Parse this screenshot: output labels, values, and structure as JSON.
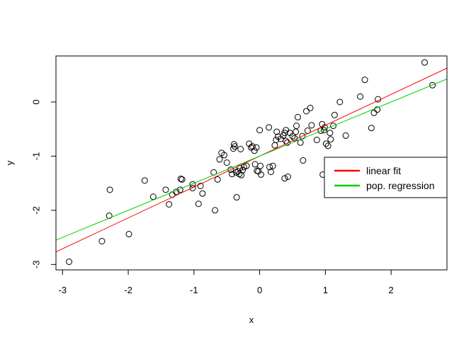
{
  "chart_data": {
    "type": "scatter",
    "title": "",
    "xlabel": "x",
    "ylabel": "y",
    "xlim": [
      -3.1,
      2.85
    ],
    "ylim": [
      -3.1,
      0.85
    ],
    "xticks": [
      -3,
      -2,
      -1,
      0,
      1,
      2
    ],
    "yticks": [
      -3,
      -2,
      -1,
      0
    ],
    "grid": false,
    "legend_position": "right",
    "legend": [
      {
        "label": "linear fit",
        "color": "#ff0000"
      },
      {
        "label": "pop. regression",
        "color": "#00cd00"
      }
    ],
    "series": [
      {
        "kind": "points",
        "marker": "open-circle",
        "color": "#000000",
        "points": [
          [
            -2.9,
            -2.95
          ],
          [
            -2.4,
            -2.57
          ],
          [
            -2.29,
            -2.1
          ],
          [
            -2.28,
            -1.62
          ],
          [
            -1.99,
            -2.44
          ],
          [
            -1.75,
            -1.45
          ],
          [
            -1.62,
            -1.75
          ],
          [
            -1.43,
            -1.62
          ],
          [
            -1.38,
            -1.89
          ],
          [
            -1.33,
            -1.71
          ],
          [
            -1.27,
            -1.66
          ],
          [
            -1.21,
            -1.62
          ],
          [
            -1.2,
            -1.42
          ],
          [
            -1.18,
            -1.43
          ],
          [
            -1.02,
            -1.52
          ],
          [
            -1.02,
            -1.59
          ],
          [
            -0.93,
            -1.88
          ],
          [
            -0.9,
            -1.55
          ],
          [
            -0.87,
            -1.69
          ],
          [
            -0.7,
            -1.3
          ],
          [
            -0.68,
            -2.0
          ],
          [
            -0.64,
            -1.43
          ],
          [
            -0.61,
            -1.06
          ],
          [
            -0.58,
            -0.94
          ],
          [
            -0.54,
            -0.98
          ],
          [
            -0.5,
            -1.12
          ],
          [
            -0.44,
            -1.25
          ],
          [
            -0.42,
            -1.33
          ],
          [
            -0.4,
            -0.86
          ],
          [
            -0.39,
            -0.78
          ],
          [
            -0.38,
            -0.82
          ],
          [
            -0.36,
            -1.3
          ],
          [
            -0.35,
            -1.76
          ],
          [
            -0.33,
            -1.28
          ],
          [
            -0.31,
            -1.33
          ],
          [
            -0.3,
            -1.22
          ],
          [
            -0.29,
            -0.87
          ],
          [
            -0.28,
            -1.35
          ],
          [
            -0.26,
            -1.26
          ],
          [
            -0.24,
            -1.2
          ],
          [
            -0.2,
            -1.18
          ],
          [
            -0.16,
            -0.77
          ],
          [
            -0.13,
            -0.84
          ],
          [
            -0.11,
            -0.82
          ],
          [
            -0.08,
            -0.9
          ],
          [
            -0.07,
            -1.15
          ],
          [
            -0.05,
            -0.84
          ],
          [
            -0.04,
            -1.27
          ],
          [
            -0.02,
            -1.28
          ],
          [
            0.0,
            -0.52
          ],
          [
            0.01,
            -1.18
          ],
          [
            0.02,
            -1.34
          ],
          [
            0.14,
            -0.47
          ],
          [
            0.15,
            -1.2
          ],
          [
            0.17,
            -1.29
          ],
          [
            0.2,
            -1.18
          ],
          [
            0.23,
            -0.8
          ],
          [
            0.25,
            -0.7
          ],
          [
            0.26,
            -0.55
          ],
          [
            0.28,
            -0.64
          ],
          [
            0.32,
            -0.68
          ],
          [
            0.36,
            -0.62
          ],
          [
            0.38,
            -0.57
          ],
          [
            0.38,
            -1.41
          ],
          [
            0.4,
            -0.52
          ],
          [
            0.4,
            -0.72
          ],
          [
            0.42,
            -0.75
          ],
          [
            0.43,
            -1.38
          ],
          [
            0.46,
            -0.57
          ],
          [
            0.5,
            -0.63
          ],
          [
            0.53,
            -0.67
          ],
          [
            0.55,
            -0.55
          ],
          [
            0.56,
            -0.44
          ],
          [
            0.58,
            -0.28
          ],
          [
            0.62,
            -0.75
          ],
          [
            0.65,
            -0.63
          ],
          [
            0.66,
            -1.08
          ],
          [
            0.71,
            -0.17
          ],
          [
            0.73,
            -0.53
          ],
          [
            0.77,
            -0.11
          ],
          [
            0.79,
            -0.43
          ],
          [
            0.87,
            -0.7
          ],
          [
            0.93,
            -0.53
          ],
          [
            0.95,
            -0.41
          ],
          [
            0.96,
            -1.34
          ],
          [
            0.98,
            -0.52
          ],
          [
            0.99,
            -0.47
          ],
          [
            1.01,
            -0.77
          ],
          [
            1.04,
            -0.81
          ],
          [
            1.07,
            -0.57
          ],
          [
            1.08,
            -0.69
          ],
          [
            1.12,
            -0.44
          ],
          [
            1.14,
            -0.24
          ],
          [
            1.22,
            0.0
          ],
          [
            1.31,
            -0.62
          ],
          [
            1.53,
            0.1
          ],
          [
            1.6,
            0.41
          ],
          [
            1.7,
            -0.48
          ],
          [
            1.74,
            -0.2
          ],
          [
            1.79,
            -0.14
          ],
          [
            1.8,
            0.05
          ],
          [
            2.51,
            0.73
          ],
          [
            2.63,
            0.31
          ]
        ]
      },
      {
        "name": "linear fit",
        "kind": "line",
        "color": "#ff0000",
        "intercept": -1.0,
        "slope": 0.57
      },
      {
        "name": "pop. regression",
        "kind": "line",
        "color": "#00cd00",
        "intercept": -1.0,
        "slope": 0.5
      }
    ]
  }
}
